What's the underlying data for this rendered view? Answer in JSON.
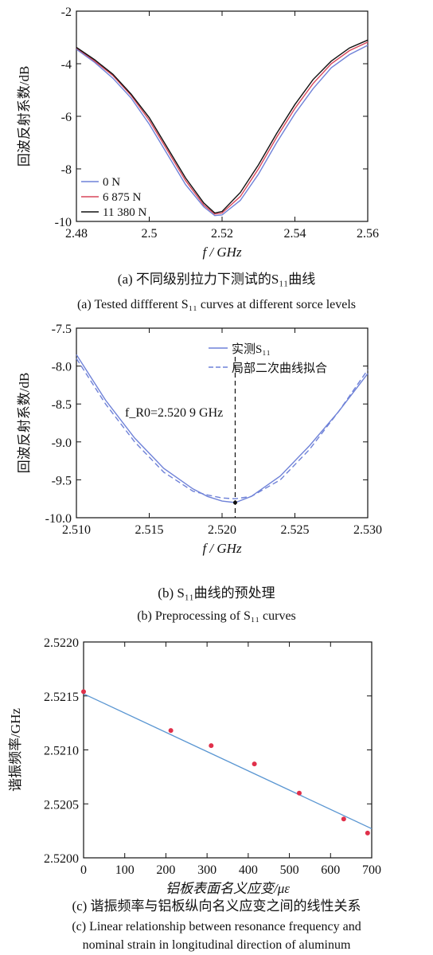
{
  "chart_data": [
    {
      "id": "a",
      "type": "line",
      "xlabel": "f / GHz",
      "ylabel": "回波反射系数/dB",
      "xlim": [
        2.48,
        2.56
      ],
      "ylim": [
        -10,
        -2
      ],
      "xticks": [
        "2.48",
        "2.5",
        "2.52",
        "2.54",
        "2.56"
      ],
      "yticks": [
        "-2",
        "-4",
        "-6",
        "-8",
        "-10"
      ],
      "legend_position": "bottom-left",
      "caption_cn": "(a)  不同级别拉力下测试的S₁₁曲线",
      "caption_en": "(a) Tested diffferent S₁₁ curves at different sorce levels",
      "series": [
        {
          "name": "0 N",
          "color": "#6f82d8",
          "x": [
            2.48,
            2.485,
            2.49,
            2.495,
            2.5,
            2.505,
            2.51,
            2.515,
            2.518,
            2.52,
            2.525,
            2.53,
            2.535,
            2.54,
            2.545,
            2.55,
            2.555,
            2.56
          ],
          "y": [
            -3.45,
            -3.95,
            -4.55,
            -5.3,
            -6.3,
            -7.45,
            -8.6,
            -9.45,
            -9.78,
            -9.75,
            -9.2,
            -8.2,
            -7.0,
            -5.9,
            -4.95,
            -4.15,
            -3.65,
            -3.3
          ]
        },
        {
          "name": "6 875 N",
          "color": "#d9475a",
          "x": [
            2.48,
            2.485,
            2.49,
            2.495,
            2.5,
            2.505,
            2.51,
            2.515,
            2.518,
            2.52,
            2.525,
            2.53,
            2.535,
            2.54,
            2.545,
            2.55,
            2.555,
            2.56
          ],
          "y": [
            -3.4,
            -3.9,
            -4.45,
            -5.2,
            -6.15,
            -7.3,
            -8.45,
            -9.38,
            -9.72,
            -9.68,
            -9.05,
            -8.0,
            -6.8,
            -5.7,
            -4.75,
            -4.0,
            -3.5,
            -3.18
          ]
        },
        {
          "name": "11 380 N",
          "color": "#111111",
          "x": [
            2.48,
            2.485,
            2.49,
            2.495,
            2.5,
            2.505,
            2.51,
            2.515,
            2.518,
            2.52,
            2.525,
            2.53,
            2.535,
            2.54,
            2.545,
            2.55,
            2.555,
            2.56
          ],
          "y": [
            -3.38,
            -3.85,
            -4.4,
            -5.15,
            -6.05,
            -7.2,
            -8.35,
            -9.3,
            -9.68,
            -9.62,
            -8.9,
            -7.85,
            -6.65,
            -5.55,
            -4.6,
            -3.9,
            -3.4,
            -3.1
          ]
        }
      ]
    },
    {
      "id": "b",
      "type": "line",
      "xlabel": "f / GHz",
      "ylabel": "回波反射系数/dB",
      "xlim": [
        2.51,
        2.53
      ],
      "ylim": [
        -10.0,
        -7.5
      ],
      "xticks": [
        "2.510",
        "2.515",
        "2.520",
        "2.525",
        "2.530"
      ],
      "yticks": [
        "-7.5",
        "-8.0",
        "-8.5",
        "-9.0",
        "-9.5",
        "-10.0"
      ],
      "legend_position": "top-right",
      "annotation": "f_R0=2.520 9 GHz",
      "vline_x": 2.5209,
      "caption_cn": "(b)  S₁₁曲线的预处理",
      "caption_en": "(b)  Preprocessing of S₁₁ curves",
      "series": [
        {
          "name": "实测S₁₁",
          "color": "#6f82d8",
          "dash": "solid",
          "x": [
            2.51,
            2.512,
            2.514,
            2.516,
            2.518,
            2.519,
            2.52,
            2.5209,
            2.522,
            2.524,
            2.526,
            2.528,
            2.53
          ],
          "y": [
            -7.85,
            -8.45,
            -8.95,
            -9.35,
            -9.62,
            -9.72,
            -9.78,
            -9.8,
            -9.72,
            -9.45,
            -9.05,
            -8.6,
            -8.1
          ]
        },
        {
          "name": "局部二次曲线拟合",
          "color": "#6f82d8",
          "dash": "dashed",
          "x": [
            2.51,
            2.512,
            2.514,
            2.516,
            2.518,
            2.519,
            2.52,
            2.5209,
            2.522,
            2.524,
            2.526,
            2.528,
            2.53
          ],
          "y": [
            -7.9,
            -8.5,
            -9.0,
            -9.4,
            -9.65,
            -9.7,
            -9.74,
            -9.75,
            -9.72,
            -9.5,
            -9.1,
            -8.6,
            -8.05
          ]
        }
      ]
    },
    {
      "id": "c",
      "type": "scatter",
      "xlabel": "铝板表面名义应变/με",
      "ylabel": "谐振频率/GHz",
      "xlim": [
        0,
        700
      ],
      "ylim": [
        2.52,
        2.522
      ],
      "xticks": [
        "0",
        "100",
        "200",
        "300",
        "400",
        "500",
        "600",
        "700"
      ],
      "yticks": [
        "2.5220",
        "2.5215",
        "2.5210",
        "2.5205",
        "2.5200"
      ],
      "caption_cn": "(c) 谐振频率与铝板纵向名义应变之间的线性关系",
      "caption_en_1": "(c) Linear relationship between resonance frequency and",
      "caption_en_2": "nominal strain in longitudinal direction of aluminum",
      "points": {
        "color": "#e0304a",
        "x": [
          0,
          212,
          310,
          415,
          524,
          632,
          690
        ],
        "y": [
          2.52154,
          2.52118,
          2.52104,
          2.52087,
          2.5206,
          2.52036,
          2.52023
        ]
      },
      "fit": {
        "color": "#5a96d2",
        "x": [
          0,
          700
        ],
        "y": [
          2.52152,
          2.52027
        ]
      }
    }
  ]
}
